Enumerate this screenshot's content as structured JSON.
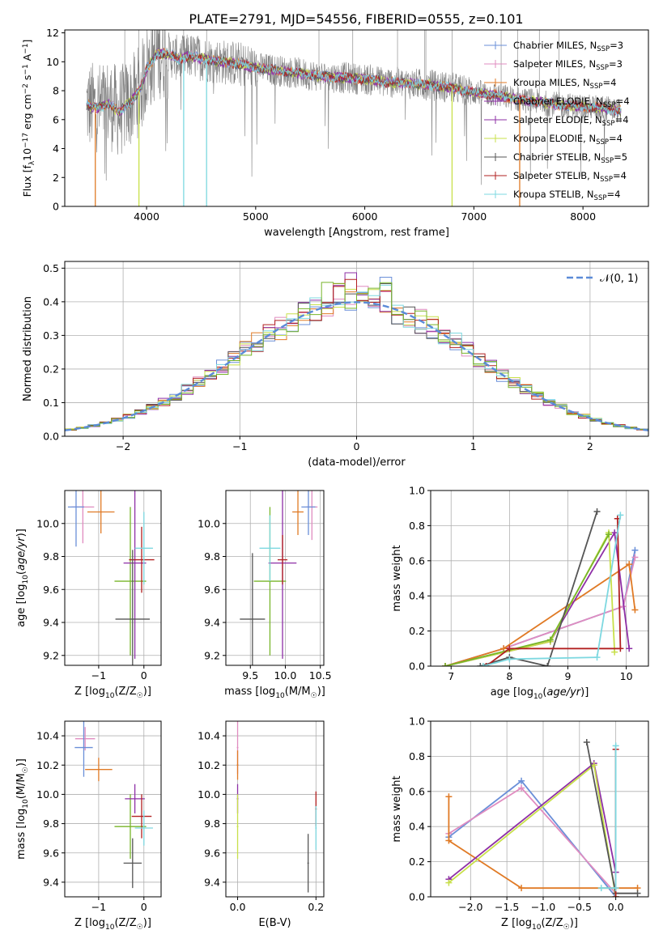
{
  "figure": {
    "title": "PLATE=2791, MJD=54556, FIBERID=0555, z=0.101"
  },
  "colors": {
    "chab_miles": "#6a8fd8",
    "salp_miles": "#e08cc0",
    "krou_miles": "#e07a25",
    "chab_elodie": "#8e2fa6",
    "salp_elodie": "#8e2fa6",
    "krou_elodie": "#c8e04a",
    "chab_stelib": "#555555",
    "salp_stelib": "#b22020",
    "krou_stelib": "#7dd8e0",
    "green": "#78b52a",
    "data": "#808080"
  },
  "chart_data": [
    {
      "id": "spectrum",
      "type": "line",
      "xlabel": "wavelength [Angstrom, rest frame]",
      "ylabel": "Flux [f_λ10^-17 erg cm^-2 s^-1 A^-1]",
      "xlim": [
        3250,
        8600
      ],
      "ylim": [
        0,
        12.2
      ],
      "xticks": [
        4000,
        5000,
        6000,
        7000,
        8000
      ],
      "yticks": [
        0,
        2,
        4,
        6,
        8,
        10,
        12
      ],
      "legend": [
        {
          "label": "Chabrier MILES, N_SSP=3",
          "color": "#6a8fd8"
        },
        {
          "label": "Salpeter MILES, N_SSP=3",
          "color": "#e08cc0"
        },
        {
          "label": "Kroupa MILES, N_SSP=4",
          "color": "#e07a25"
        },
        {
          "label": "Chabrier ELODIE, N_SSP=4",
          "color": "#8e2fa6"
        },
        {
          "label": "Salpeter ELODIE, N_SSP=4",
          "color": "#8e2fa6"
        },
        {
          "label": "Kroupa ELODIE, N_SSP=4",
          "color": "#c8e04a"
        },
        {
          "label": "Chabrier STELIB, N_SSP=5",
          "color": "#555555"
        },
        {
          "label": "Salpeter STELIB, N_SSP=4",
          "color": "#b22020"
        },
        {
          "label": "Kroupa STELIB, N_SSP=4",
          "color": "#7dd8e0"
        }
      ],
      "model_continuum": [
        [
          3450,
          7.0
        ],
        [
          3550,
          6.8
        ],
        [
          3650,
          7.1
        ],
        [
          3750,
          6.5
        ],
        [
          3850,
          7.2
        ],
        [
          3950,
          8.2
        ],
        [
          4000,
          9.5
        ],
        [
          4100,
          10.6
        ],
        [
          4200,
          10.5
        ],
        [
          4300,
          10.2
        ],
        [
          4400,
          10.4
        ],
        [
          4600,
          10.1
        ],
        [
          4800,
          9.9
        ],
        [
          5000,
          9.6
        ],
        [
          5200,
          9.4
        ],
        [
          5400,
          9.2
        ],
        [
          5600,
          9.0
        ],
        [
          5800,
          8.9
        ],
        [
          6000,
          8.8
        ],
        [
          6200,
          8.6
        ],
        [
          6400,
          8.5
        ],
        [
          6600,
          8.4
        ],
        [
          6800,
          8.2
        ],
        [
          7000,
          7.9
        ],
        [
          7200,
          7.7
        ],
        [
          7400,
          7.4
        ],
        [
          7600,
          7.2
        ],
        [
          7800,
          7.0
        ],
        [
          8000,
          6.9
        ],
        [
          8200,
          6.8
        ],
        [
          8350,
          6.6
        ]
      ],
      "sky_lines": [
        3800,
        3930,
        4100,
        4340,
        4550,
        5580,
        5890,
        6300,
        6550,
        6560,
        6800,
        7250,
        7400,
        7600,
        7780
      ],
      "model_drops": [
        {
          "x": 3530,
          "color": "#e07a25"
        },
        {
          "x": 3930,
          "color": "#c8e04a"
        },
        {
          "x": 4340,
          "color": "#7dd8e0"
        },
        {
          "x": 4550,
          "color": "#7dd8e0"
        },
        {
          "x": 6800,
          "color": "#c8e04a"
        },
        {
          "x": 7420,
          "color": "#e07a25"
        }
      ]
    },
    {
      "id": "residuals",
      "type": "line",
      "xlabel": "(data-model)/error",
      "ylabel": "Normed distribution",
      "xlim": [
        -2.5,
        2.5
      ],
      "ylim": [
        0,
        0.52
      ],
      "xticks": [
        -2,
        -1,
        0,
        1,
        2
      ],
      "yticks": [
        0.0,
        0.1,
        0.2,
        0.3,
        0.4,
        0.5
      ],
      "legend": [
        {
          "label": "𝒩(0, 1)",
          "color": "#5b8bd8"
        }
      ],
      "bin_width": 0.1
    },
    {
      "id": "age_vs_Z",
      "type": "scatter",
      "xlabel": "Z [log10(Z/Z☉)]",
      "ylabel": "age [log10(age/yr)]",
      "xlim": [
        -1.75,
        0.38
      ],
      "ylim": [
        9.14,
        10.2
      ],
      "xticks": [
        -1,
        0
      ],
      "yticks": [
        9.2,
        9.4,
        9.6,
        9.8,
        10.0
      ],
      "points": [
        {
          "x": -1.35,
          "y": 10.1,
          "xe": 0.25,
          "ye": 0.22,
          "color": "#e08cc0"
        },
        {
          "x": -1.5,
          "y": 10.1,
          "xe": 0.18,
          "ye": 0.24,
          "color": "#6a8fd8"
        },
        {
          "x": -0.95,
          "y": 10.07,
          "xe": 0.3,
          "ye": 0.13,
          "color": "#e07a25"
        },
        {
          "x": -0.3,
          "y": 9.65,
          "xe": 0.35,
          "ye": 0.45,
          "color": "#78b52a"
        },
        {
          "x": -0.2,
          "y": 9.76,
          "xe": 0.25,
          "ye": 0.58,
          "color": "#8e2fa6"
        },
        {
          "x": -0.05,
          "y": 9.78,
          "xe": 0.28,
          "ye": 0.2,
          "color": "#b22020"
        },
        {
          "x": -0.25,
          "y": 9.42,
          "xe": 0.38,
          "ye": 0.42,
          "color": "#555555"
        },
        {
          "x": 0.0,
          "y": 9.85,
          "xe": 0.2,
          "ye": 0.22,
          "color": "#7dd8e0"
        }
      ]
    },
    {
      "id": "age_vs_mass",
      "type": "scatter",
      "xlabel": "mass [log10(M/M☉)]",
      "ylabel": "",
      "xlim": [
        9.15,
        10.55
      ],
      "ylim": [
        9.14,
        10.2
      ],
      "xticks": [
        9.5,
        10.0,
        10.5
      ],
      "yticks": [
        9.2,
        9.4,
        9.6,
        9.8,
        10.0
      ],
      "points": [
        {
          "x": 10.38,
          "y": 10.1,
          "xe": 0.08,
          "ye": 0.2,
          "color": "#e08cc0"
        },
        {
          "x": 10.33,
          "y": 10.1,
          "xe": 0.1,
          "ye": 0.17,
          "color": "#6a8fd8"
        },
        {
          "x": 10.18,
          "y": 10.07,
          "xe": 0.08,
          "ye": 0.14,
          "color": "#e07a25"
        },
        {
          "x": 9.78,
          "y": 9.65,
          "xe": 0.23,
          "ye": 0.45,
          "color": "#78b52a"
        },
        {
          "x": 9.96,
          "y": 9.76,
          "xe": 0.2,
          "ye": 0.58,
          "color": "#8e2fa6"
        },
        {
          "x": 9.96,
          "y": 9.78,
          "xe": 0.07,
          "ye": 0.15,
          "color": "#b22020"
        },
        {
          "x": 9.53,
          "y": 9.42,
          "xe": 0.18,
          "ye": 0.4,
          "color": "#555555"
        },
        {
          "x": 9.78,
          "y": 9.85,
          "xe": 0.15,
          "ye": 0.2,
          "color": "#7dd8e0"
        }
      ]
    },
    {
      "id": "weight_vs_age",
      "type": "line",
      "xlabel": "age [log10(age/yr)]",
      "ylabel": "mass weight",
      "xlim": [
        6.65,
        10.38
      ],
      "ylim": [
        0,
        1.0
      ],
      "xticks": [
        7,
        8,
        9,
        10
      ],
      "yticks": [
        0.0,
        0.2,
        0.4,
        0.6,
        0.8,
        1.0
      ],
      "series": [
        {
          "color": "#6a8fd8",
          "points": [
            [
              6.9,
              0.0
            ],
            [
              7.9,
              0.1
            ],
            [
              9.95,
              0.34
            ],
            [
              10.15,
              0.66
            ]
          ]
        },
        {
          "color": "#e08cc0",
          "points": [
            [
              6.9,
              0.0
            ],
            [
              7.9,
              0.1
            ],
            [
              9.95,
              0.34
            ],
            [
              10.15,
              0.62
            ]
          ]
        },
        {
          "color": "#e07a25",
          "points": [
            [
              6.9,
              0.0
            ],
            [
              7.9,
              0.1
            ],
            [
              10.05,
              0.58
            ],
            [
              10.15,
              0.32
            ]
          ]
        },
        {
          "color": "#8e2fa6",
          "points": [
            [
              6.9,
              0.0
            ],
            [
              8.7,
              0.14
            ],
            [
              9.8,
              0.76
            ],
            [
              10.05,
              0.1
            ]
          ]
        },
        {
          "color": "#c8e04a",
          "points": [
            [
              6.9,
              0.0
            ],
            [
              8.7,
              0.14
            ],
            [
              9.7,
              0.76
            ],
            [
              9.8,
              0.08
            ]
          ]
        },
        {
          "color": "#78b52a",
          "points": [
            [
              6.9,
              0.0
            ],
            [
              8.7,
              0.15
            ],
            [
              9.7,
              0.75
            ]
          ]
        },
        {
          "color": "#555555",
          "points": [
            [
              7.5,
              0.0
            ],
            [
              8.0,
              0.05
            ],
            [
              8.65,
              0.0
            ],
            [
              9.5,
              0.88
            ]
          ]
        },
        {
          "color": "#b22020",
          "points": [
            [
              7.6,
              0.0
            ],
            [
              8.0,
              0.1
            ],
            [
              9.9,
              0.1
            ],
            [
              9.85,
              0.84
            ]
          ]
        },
        {
          "color": "#7dd8e0",
          "points": [
            [
              7.55,
              0.0
            ],
            [
              8.0,
              0.04
            ],
            [
              9.5,
              0.05
            ],
            [
              9.9,
              0.86
            ]
          ]
        }
      ]
    },
    {
      "id": "mass_vs_Z",
      "type": "scatter",
      "xlabel": "Z [log10(Z/Z☉)]",
      "ylabel": "mass [log10(M/M☉)]",
      "xlim": [
        -1.75,
        0.38
      ],
      "ylim": [
        9.3,
        10.5
      ],
      "xticks": [
        -1,
        0
      ],
      "yticks": [
        9.4,
        9.6,
        9.8,
        10.0,
        10.2,
        10.4
      ],
      "points": [
        {
          "x": -1.3,
          "y": 10.38,
          "xe": 0.22,
          "ye": 0.08,
          "color": "#e08cc0"
        },
        {
          "x": -1.33,
          "y": 10.32,
          "xe": 0.2,
          "ye": 0.2,
          "color": "#6a8fd8"
        },
        {
          "x": -1.0,
          "y": 10.17,
          "xe": 0.3,
          "ye": 0.08,
          "color": "#e07a25"
        },
        {
          "x": -0.3,
          "y": 9.78,
          "xe": 0.35,
          "ye": 0.22,
          "color": "#78b52a"
        },
        {
          "x": -0.2,
          "y": 9.97,
          "xe": 0.22,
          "ye": 0.1,
          "color": "#8e2fa6"
        },
        {
          "x": -0.05,
          "y": 9.85,
          "xe": 0.22,
          "ye": 0.15,
          "color": "#b22020"
        },
        {
          "x": -0.25,
          "y": 9.53,
          "xe": 0.2,
          "ye": 0.17,
          "color": "#555555"
        },
        {
          "x": 0.0,
          "y": 9.77,
          "xe": 0.2,
          "ye": 0.12,
          "color": "#7dd8e0"
        }
      ]
    },
    {
      "id": "mass_vs_ebv",
      "type": "scatter",
      "xlabel": "E(B-V)",
      "ylabel": "",
      "xlim": [
        -0.03,
        0.22
      ],
      "ylim": [
        9.3,
        10.5
      ],
      "xticks": [
        0.0,
        0.2
      ],
      "yticks": [
        9.4,
        9.6,
        9.8,
        10.0,
        10.2,
        10.4
      ],
      "points": [
        {
          "x": 0.0,
          "y": 10.32,
          "xe": 0.002,
          "ye": 0.18,
          "color": "#e08cc0"
        },
        {
          "x": 0.0,
          "y": 10.2,
          "xe": 0.002,
          "ye": 0.1,
          "color": "#e07a25"
        },
        {
          "x": 0.0,
          "y": 9.97,
          "xe": 0.002,
          "ye": 0.1,
          "color": "#8e2fa6"
        },
        {
          "x": 0.0,
          "y": 9.78,
          "xe": 0.002,
          "ye": 0.22,
          "color": "#c8e04a"
        },
        {
          "x": 0.18,
          "y": 9.53,
          "xe": 0.002,
          "ye": 0.2,
          "color": "#555555"
        },
        {
          "x": 0.2,
          "y": 9.9,
          "xe": 0.002,
          "ye": 0.12,
          "color": "#b22020"
        },
        {
          "x": 0.2,
          "y": 9.77,
          "xe": 0.002,
          "ye": 0.15,
          "color": "#7dd8e0"
        }
      ]
    },
    {
      "id": "weight_vs_Z",
      "type": "line",
      "xlabel": "Z [log10(Z/Z☉)]",
      "ylabel": "mass weight",
      "xlim": [
        -2.55,
        0.45
      ],
      "ylim": [
        0,
        1.0
      ],
      "xticks": [
        -2.0,
        -1.5,
        -1.0,
        -0.5,
        0.0
      ],
      "yticks": [
        0.0,
        0.2,
        0.4,
        0.6,
        0.8,
        1.0
      ],
      "series": [
        {
          "color": "#6a8fd8",
          "points": [
            [
              -2.3,
              0.34
            ],
            [
              -1.3,
              0.66
            ],
            [
              0.0,
              0.0
            ]
          ]
        },
        {
          "color": "#e08cc0",
          "points": [
            [
              -2.3,
              0.36
            ],
            [
              -1.3,
              0.62
            ],
            [
              0.0,
              0.02
            ]
          ]
        },
        {
          "color": "#e07a25",
          "points": [
            [
              -2.3,
              0.57
            ],
            [
              -2.3,
              0.32
            ],
            [
              -1.3,
              0.05
            ],
            [
              0.3,
              0.05
            ]
          ]
        },
        {
          "color": "#8e2fa6",
          "points": [
            [
              -2.3,
              0.1
            ],
            [
              -0.3,
              0.76
            ],
            [
              0.0,
              0.14
            ]
          ]
        },
        {
          "color": "#c8e04a",
          "points": [
            [
              -2.3,
              0.08
            ],
            [
              -0.3,
              0.75
            ],
            [
              0.0,
              0.0
            ]
          ]
        },
        {
          "color": "#555555",
          "points": [
            [
              -0.4,
              0.88
            ],
            [
              0.0,
              0.02
            ],
            [
              0.3,
              0.02
            ]
          ]
        },
        {
          "color": "#b22020",
          "points": [
            [
              0.0,
              0.84
            ],
            [
              0.0,
              0.0
            ]
          ]
        },
        {
          "color": "#7dd8e0",
          "points": [
            [
              0.0,
              0.86
            ],
            [
              0.0,
              0.05
            ],
            [
              -0.2,
              0.05
            ]
          ]
        }
      ]
    }
  ]
}
